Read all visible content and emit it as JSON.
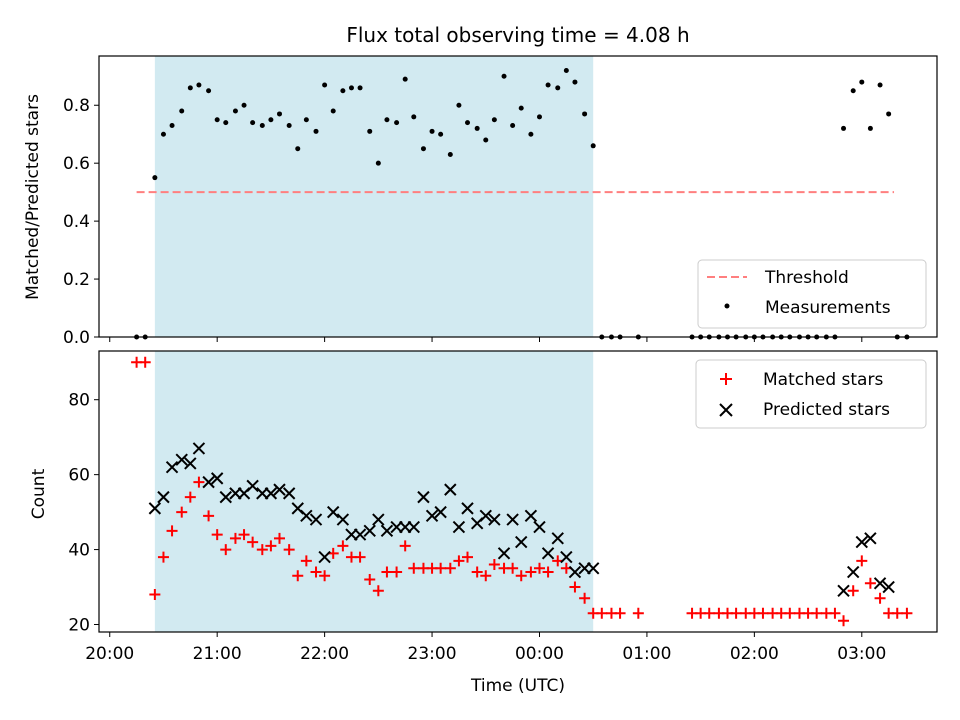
{
  "chart_data": {
    "title": "Flux total observing time = 4.08 h",
    "xlabel": "Time (UTC)",
    "x_tick_labels": [
      "20:00",
      "21:00",
      "22:00",
      "23:00",
      "00:00",
      "01:00",
      "02:00",
      "03:00"
    ],
    "x_range_hours": [
      19.9,
      27.7
    ],
    "highlight_span_hours": [
      20.42,
      24.5
    ],
    "colors": {
      "highlight": "#add8e6",
      "threshold": "#ff7f7f",
      "matched": "#ff0000",
      "predicted": "#000000",
      "measurements": "#000000"
    },
    "panels": [
      {
        "type": "scatter",
        "ylabel": "Matched/Predicted stars",
        "ylim": [
          0,
          0.97
        ],
        "y_ticks": [
          "0.0",
          "0.2",
          "0.4",
          "0.6",
          "0.8"
        ],
        "legend": {
          "placement": "lower-right",
          "entries": [
            "Threshold",
            "Measurements"
          ]
        },
        "threshold": {
          "name": "Threshold",
          "value": 0.5,
          "x_start": 20.25,
          "x_end": 27.3
        },
        "series": [
          {
            "name": "Measurements",
            "points": [
              [
                20.25,
                0
              ],
              [
                20.33,
                0
              ],
              [
                20.42,
                0.55
              ],
              [
                20.5,
                0.7
              ],
              [
                20.58,
                0.73
              ],
              [
                20.67,
                0.78
              ],
              [
                20.75,
                0.86
              ],
              [
                20.83,
                0.87
              ],
              [
                20.92,
                0.85
              ],
              [
                21.0,
                0.75
              ],
              [
                21.08,
                0.74
              ],
              [
                21.17,
                0.78
              ],
              [
                21.25,
                0.8
              ],
              [
                21.33,
                0.74
              ],
              [
                21.42,
                0.73
              ],
              [
                21.5,
                0.75
              ],
              [
                21.58,
                0.77
              ],
              [
                21.67,
                0.73
              ],
              [
                21.75,
                0.65
              ],
              [
                21.83,
                0.75
              ],
              [
                21.92,
                0.71
              ],
              [
                22.0,
                0.87
              ],
              [
                22.08,
                0.78
              ],
              [
                22.17,
                0.85
              ],
              [
                22.25,
                0.86
              ],
              [
                22.33,
                0.86
              ],
              [
                22.42,
                0.71
              ],
              [
                22.5,
                0.6
              ],
              [
                22.58,
                0.75
              ],
              [
                22.67,
                0.74
              ],
              [
                22.75,
                0.89
              ],
              [
                22.83,
                0.76
              ],
              [
                22.92,
                0.65
              ],
              [
                23.0,
                0.71
              ],
              [
                23.08,
                0.7
              ],
              [
                23.17,
                0.63
              ],
              [
                23.25,
                0.8
              ],
              [
                23.33,
                0.74
              ],
              [
                23.42,
                0.72
              ],
              [
                23.5,
                0.68
              ],
              [
                23.58,
                0.75
              ],
              [
                23.67,
                0.9
              ],
              [
                23.75,
                0.73
              ],
              [
                23.83,
                0.79
              ],
              [
                23.92,
                0.7
              ],
              [
                24.0,
                0.76
              ],
              [
                24.08,
                0.87
              ],
              [
                24.17,
                0.86
              ],
              [
                24.25,
                0.92
              ],
              [
                24.33,
                0.88
              ],
              [
                24.42,
                0.77
              ],
              [
                24.5,
                0.66
              ],
              [
                24.58,
                0
              ],
              [
                24.67,
                0
              ],
              [
                24.75,
                0
              ],
              [
                24.92,
                0
              ],
              [
                25.42,
                0
              ],
              [
                25.5,
                0
              ],
              [
                25.58,
                0
              ],
              [
                25.67,
                0
              ],
              [
                25.75,
                0
              ],
              [
                25.83,
                0
              ],
              [
                25.92,
                0
              ],
              [
                26.0,
                0
              ],
              [
                26.08,
                0
              ],
              [
                26.17,
                0
              ],
              [
                26.25,
                0
              ],
              [
                26.33,
                0
              ],
              [
                26.42,
                0
              ],
              [
                26.5,
                0
              ],
              [
                26.58,
                0
              ],
              [
                26.67,
                0
              ],
              [
                26.75,
                0
              ],
              [
                26.83,
                0.72
              ],
              [
                26.92,
                0.85
              ],
              [
                27.0,
                0.88
              ],
              [
                27.08,
                0.72
              ],
              [
                27.17,
                0.87
              ],
              [
                27.25,
                0.77
              ],
              [
                27.33,
                0
              ],
              [
                27.42,
                0
              ]
            ]
          }
        ]
      },
      {
        "type": "scatter",
        "ylabel": "Count",
        "ylim": [
          18,
          93
        ],
        "y_ticks": [
          "20",
          "40",
          "60",
          "80"
        ],
        "legend": {
          "placement": "upper-right",
          "entries": [
            "Matched stars",
            "Predicted stars"
          ]
        },
        "series": [
          {
            "name": "Matched stars",
            "marker": "plus",
            "points": [
              [
                20.25,
                90
              ],
              [
                20.33,
                90
              ],
              [
                20.42,
                28
              ],
              [
                20.5,
                38
              ],
              [
                20.58,
                45
              ],
              [
                20.67,
                50
              ],
              [
                20.75,
                54
              ],
              [
                20.83,
                58
              ],
              [
                20.92,
                49
              ],
              [
                21.0,
                44
              ],
              [
                21.08,
                40
              ],
              [
                21.17,
                43
              ],
              [
                21.25,
                44
              ],
              [
                21.33,
                42
              ],
              [
                21.42,
                40
              ],
              [
                21.5,
                41
              ],
              [
                21.58,
                43
              ],
              [
                21.67,
                40
              ],
              [
                21.75,
                33
              ],
              [
                21.83,
                37
              ],
              [
                21.92,
                34
              ],
              [
                22.0,
                33
              ],
              [
                22.08,
                39
              ],
              [
                22.17,
                41
              ],
              [
                22.25,
                38
              ],
              [
                22.33,
                38
              ],
              [
                22.42,
                32
              ],
              [
                22.5,
                29
              ],
              [
                22.58,
                34
              ],
              [
                22.67,
                34
              ],
              [
                22.75,
                41
              ],
              [
                22.83,
                35
              ],
              [
                22.92,
                35
              ],
              [
                23.0,
                35
              ],
              [
                23.08,
                35
              ],
              [
                23.17,
                35
              ],
              [
                23.25,
                37
              ],
              [
                23.33,
                38
              ],
              [
                23.42,
                34
              ],
              [
                23.5,
                33
              ],
              [
                23.58,
                36
              ],
              [
                23.67,
                35
              ],
              [
                23.75,
                35
              ],
              [
                23.83,
                33
              ],
              [
                23.92,
                34
              ],
              [
                24.0,
                35
              ],
              [
                24.08,
                34
              ],
              [
                24.17,
                37
              ],
              [
                24.25,
                35
              ],
              [
                24.33,
                30
              ],
              [
                24.42,
                27
              ],
              [
                24.5,
                23
              ],
              [
                24.58,
                23
              ],
              [
                24.67,
                23
              ],
              [
                24.75,
                23
              ],
              [
                24.92,
                23
              ],
              [
                25.42,
                23
              ],
              [
                25.5,
                23
              ],
              [
                25.58,
                23
              ],
              [
                25.67,
                23
              ],
              [
                25.75,
                23
              ],
              [
                25.83,
                23
              ],
              [
                25.92,
                23
              ],
              [
                26.0,
                23
              ],
              [
                26.08,
                23
              ],
              [
                26.17,
                23
              ],
              [
                26.25,
                23
              ],
              [
                26.33,
                23
              ],
              [
                26.42,
                23
              ],
              [
                26.5,
                23
              ],
              [
                26.58,
                23
              ],
              [
                26.67,
                23
              ],
              [
                26.75,
                23
              ],
              [
                26.83,
                21
              ],
              [
                26.92,
                29
              ],
              [
                27.0,
                37
              ],
              [
                27.08,
                31
              ],
              [
                27.17,
                27
              ],
              [
                27.25,
                23
              ],
              [
                27.33,
                23
              ],
              [
                27.42,
                23
              ]
            ]
          },
          {
            "name": "Predicted stars",
            "marker": "x",
            "points": [
              [
                20.42,
                51
              ],
              [
                20.5,
                54
              ],
              [
                20.58,
                62
              ],
              [
                20.67,
                64
              ],
              [
                20.75,
                63
              ],
              [
                20.83,
                67
              ],
              [
                20.92,
                58
              ],
              [
                21.0,
                59
              ],
              [
                21.08,
                54
              ],
              [
                21.17,
                55
              ],
              [
                21.25,
                55
              ],
              [
                21.33,
                57
              ],
              [
                21.42,
                55
              ],
              [
                21.5,
                55
              ],
              [
                21.58,
                56
              ],
              [
                21.67,
                55
              ],
              [
                21.75,
                51
              ],
              [
                21.83,
                49
              ],
              [
                21.92,
                48
              ],
              [
                22.0,
                38
              ],
              [
                22.08,
                50
              ],
              [
                22.17,
                48
              ],
              [
                22.25,
                44
              ],
              [
                22.33,
                44
              ],
              [
                22.42,
                45
              ],
              [
                22.5,
                48
              ],
              [
                22.58,
                45
              ],
              [
                22.67,
                46
              ],
              [
                22.75,
                46
              ],
              [
                22.83,
                46
              ],
              [
                22.92,
                54
              ],
              [
                23.0,
                49
              ],
              [
                23.08,
                50
              ],
              [
                23.17,
                56
              ],
              [
                23.25,
                46
              ],
              [
                23.33,
                51
              ],
              [
                23.42,
                47
              ],
              [
                23.5,
                49
              ],
              [
                23.58,
                48
              ],
              [
                23.67,
                39
              ],
              [
                23.75,
                48
              ],
              [
                23.83,
                42
              ],
              [
                23.92,
                49
              ],
              [
                24.0,
                46
              ],
              [
                24.08,
                39
              ],
              [
                24.17,
                43
              ],
              [
                24.25,
                38
              ],
              [
                24.33,
                34
              ],
              [
                24.42,
                35
              ],
              [
                24.5,
                35
              ],
              [
                26.83,
                29
              ],
              [
                26.92,
                34
              ],
              [
                27.0,
                42
              ],
              [
                27.08,
                43
              ],
              [
                27.17,
                31
              ],
              [
                27.25,
                30
              ]
            ]
          }
        ]
      }
    ]
  }
}
